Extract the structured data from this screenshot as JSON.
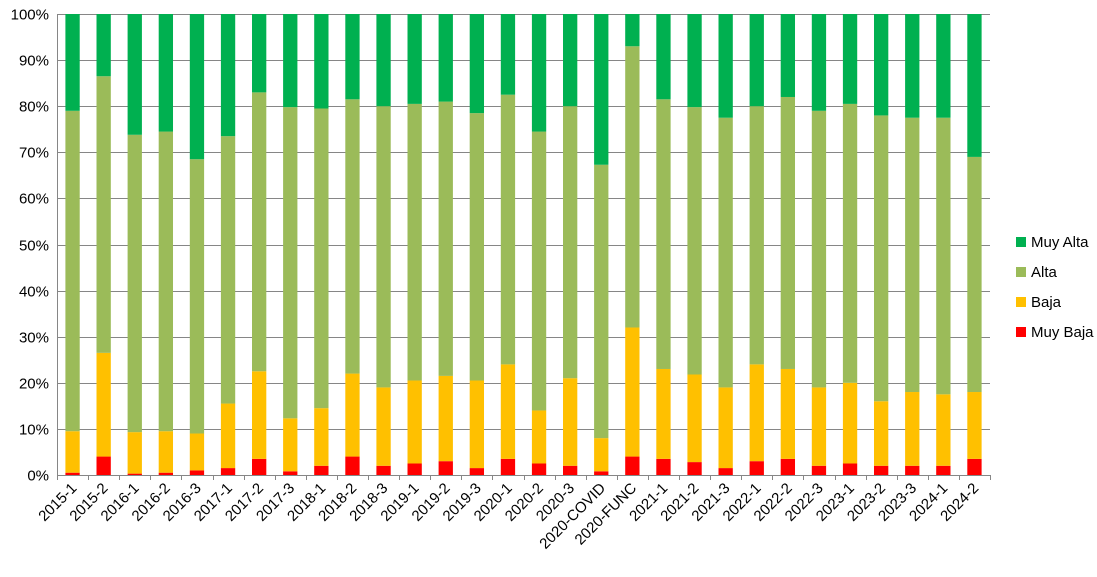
{
  "chart_data": {
    "type": "bar",
    "stacked": true,
    "normalized_percent": true,
    "title": "",
    "xlabel": "",
    "ylabel": "",
    "ylim": [
      0,
      100
    ],
    "y_ticks": [
      "0%",
      "10%",
      "20%",
      "30%",
      "40%",
      "50%",
      "60%",
      "70%",
      "80%",
      "90%",
      "100%"
    ],
    "grid": "horizontal",
    "legend_position": "right",
    "categories": [
      "2015-1",
      "2015-2",
      "2016-1",
      "2016-2",
      "2016-3",
      "2017-1",
      "2017-2",
      "2017-3",
      "2018-1",
      "2018-2",
      "2018-3",
      "2019-1",
      "2019-2",
      "2019-3",
      "2020-1",
      "2020-2",
      "2020-3",
      "2020-COVID",
      "2020-FUNC",
      "2021-1",
      "2021-2",
      "2021-3",
      "2022-1",
      "2022-2",
      "2022-3",
      "2023-1",
      "2023-2",
      "2023-3",
      "2024-1",
      "2024-2"
    ],
    "series": [
      {
        "name": "Muy Baja",
        "color": "#ff0000",
        "values": [
          0.5,
          4,
          0.3,
          0.5,
          1,
          1.5,
          3.5,
          0.8,
          2,
          4,
          2,
          2.5,
          3,
          1.5,
          3.5,
          2.5,
          2,
          0.8,
          4,
          3.5,
          2.8,
          1.5,
          3,
          3.5,
          2,
          2.5,
          2,
          2,
          2,
          3.5
        ]
      },
      {
        "name": "Baja",
        "color": "#ffc000",
        "values": [
          9,
          22.5,
          9,
          9,
          8,
          14,
          19,
          11.5,
          12.5,
          18,
          17,
          18,
          18.5,
          19,
          20.5,
          11.5,
          19,
          7.2,
          28,
          19.5,
          19,
          17.5,
          21,
          19.5,
          17,
          17.5,
          14,
          16,
          15.5,
          14.5
        ]
      },
      {
        "name": "Alta",
        "color": "#9bbb59",
        "values": [
          69.5,
          60,
          64.5,
          65,
          59.5,
          58,
          60.5,
          67.5,
          65,
          59.5,
          61,
          60,
          59.5,
          58,
          58.5,
          60.5,
          59,
          59.3,
          61,
          58.5,
          58,
          58.5,
          56,
          59,
          60,
          60.5,
          62,
          59.5,
          60,
          51
        ]
      },
      {
        "name": "Muy Alta",
        "color": "#00b050",
        "values": [
          21,
          13.5,
          26.2,
          25.5,
          31.5,
          26.5,
          17,
          20.2,
          20.5,
          18.5,
          20,
          19.5,
          19,
          21.5,
          17.5,
          25.5,
          20,
          32.7,
          7,
          18.5,
          20.2,
          22.5,
          20,
          18,
          21,
          19.5,
          22,
          22.5,
          22.5,
          31
        ]
      }
    ]
  }
}
